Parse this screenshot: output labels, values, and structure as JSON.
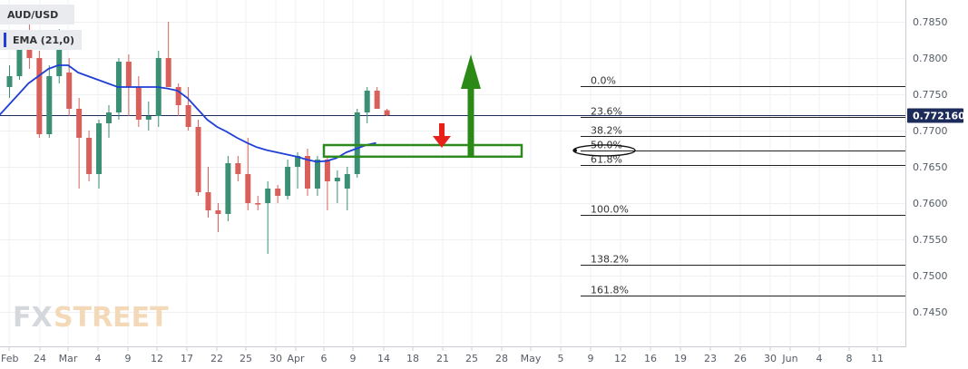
{
  "chart_data": {
    "type": "candlestick",
    "symbol": "AUD/USD",
    "indicator": "EMA (21,0)",
    "current_price": "0.772160",
    "ylim": [
      0.7405,
      0.788
    ],
    "y_ticks": [
      "0.7850",
      "0.7800",
      "0.7750",
      "0.7700",
      "0.7650",
      "0.7600",
      "0.7550",
      "0.7500",
      "0.7450"
    ],
    "x_ticks": [
      "Feb",
      "24",
      "Mar",
      "4",
      "9",
      "12",
      "17",
      "22",
      "25",
      "30",
      "Apr",
      "6",
      "9",
      "14",
      "18",
      "21",
      "25",
      "28",
      "May",
      "5",
      "9",
      "12",
      "16",
      "19",
      "23",
      "26",
      "30",
      "Jun",
      "4",
      "8",
      "11"
    ],
    "candles": [
      {
        "o": 0.776,
        "h": 0.779,
        "l": 0.7745,
        "c": 0.7775
      },
      {
        "o": 0.7775,
        "h": 0.7835,
        "l": 0.777,
        "c": 0.7825
      },
      {
        "o": 0.7825,
        "h": 0.785,
        "l": 0.7785,
        "c": 0.78
      },
      {
        "o": 0.78,
        "h": 0.781,
        "l": 0.769,
        "c": 0.7695
      },
      {
        "o": 0.7695,
        "h": 0.779,
        "l": 0.769,
        "c": 0.7775
      },
      {
        "o": 0.7775,
        "h": 0.784,
        "l": 0.7765,
        "c": 0.783
      },
      {
        "o": 0.778,
        "h": 0.78,
        "l": 0.772,
        "c": 0.773
      },
      {
        "o": 0.773,
        "h": 0.7745,
        "l": 0.762,
        "c": 0.769
      },
      {
        "o": 0.769,
        "h": 0.77,
        "l": 0.763,
        "c": 0.764
      },
      {
        "o": 0.764,
        "h": 0.7715,
        "l": 0.762,
        "c": 0.771
      },
      {
        "o": 0.771,
        "h": 0.7735,
        "l": 0.769,
        "c": 0.7725
      },
      {
        "o": 0.7725,
        "h": 0.78,
        "l": 0.7715,
        "c": 0.7795
      },
      {
        "o": 0.7795,
        "h": 0.7805,
        "l": 0.772,
        "c": 0.776
      },
      {
        "o": 0.776,
        "h": 0.7775,
        "l": 0.7705,
        "c": 0.7715
      },
      {
        "o": 0.7715,
        "h": 0.774,
        "l": 0.77,
        "c": 0.772
      },
      {
        "o": 0.772,
        "h": 0.781,
        "l": 0.7705,
        "c": 0.78
      },
      {
        "o": 0.78,
        "h": 0.785,
        "l": 0.776,
        "c": 0.776
      },
      {
        "o": 0.776,
        "h": 0.7765,
        "l": 0.772,
        "c": 0.7735
      },
      {
        "o": 0.7735,
        "h": 0.776,
        "l": 0.77,
        "c": 0.7705
      },
      {
        "o": 0.7705,
        "h": 0.7715,
        "l": 0.761,
        "c": 0.7615
      },
      {
        "o": 0.7615,
        "h": 0.765,
        "l": 0.758,
        "c": 0.759
      },
      {
        "o": 0.759,
        "h": 0.76,
        "l": 0.756,
        "c": 0.7585
      },
      {
        "o": 0.7585,
        "h": 0.7665,
        "l": 0.7575,
        "c": 0.7655
      },
      {
        "o": 0.7655,
        "h": 0.7665,
        "l": 0.763,
        "c": 0.764
      },
      {
        "o": 0.764,
        "h": 0.769,
        "l": 0.759,
        "c": 0.76
      },
      {
        "o": 0.76,
        "h": 0.761,
        "l": 0.759,
        "c": 0.7598
      },
      {
        "o": 0.76,
        "h": 0.763,
        "l": 0.753,
        "c": 0.762
      },
      {
        "o": 0.762,
        "h": 0.7625,
        "l": 0.76,
        "c": 0.761
      },
      {
        "o": 0.761,
        "h": 0.766,
        "l": 0.7605,
        "c": 0.765
      },
      {
        "o": 0.765,
        "h": 0.767,
        "l": 0.762,
        "c": 0.7665
      },
      {
        "o": 0.7665,
        "h": 0.7675,
        "l": 0.761,
        "c": 0.762
      },
      {
        "o": 0.762,
        "h": 0.7665,
        "l": 0.761,
        "c": 0.766
      },
      {
        "o": 0.766,
        "h": 0.7665,
        "l": 0.759,
        "c": 0.763
      },
      {
        "o": 0.763,
        "h": 0.7645,
        "l": 0.76,
        "c": 0.7635
      },
      {
        "o": 0.762,
        "h": 0.765,
        "l": 0.759,
        "c": 0.764
      },
      {
        "o": 0.764,
        "h": 0.773,
        "l": 0.7635,
        "c": 0.7725
      },
      {
        "o": 0.7725,
        "h": 0.776,
        "l": 0.771,
        "c": 0.7755
      },
      {
        "o": 0.7755,
        "h": 0.776,
        "l": 0.773,
        "c": 0.773
      },
      {
        "o": 0.7728,
        "h": 0.773,
        "l": 0.772,
        "c": 0.7721
      }
    ],
    "ema": [
      0.772,
      0.7735,
      0.775,
      0.7765,
      0.7775,
      0.7785,
      0.779,
      0.779,
      0.778,
      0.7775,
      0.777,
      0.7765,
      0.776,
      0.776,
      0.776,
      0.776,
      0.776,
      0.7758,
      0.7755,
      0.7745,
      0.773,
      0.7715,
      0.7705,
      0.7698,
      0.769,
      0.7683,
      0.7677,
      0.7673,
      0.767,
      0.7667,
      0.7664,
      0.766,
      0.7657,
      0.7658,
      0.7662,
      0.767,
      0.7675,
      0.768,
      0.7683
    ],
    "fibonacci": [
      {
        "label": "0.0%",
        "value": 0.7761
      },
      {
        "label": "23.6%",
        "value": 0.7719
      },
      {
        "label": "38.2%",
        "value": 0.7693
      },
      {
        "label": "50.0%",
        "value": 0.7672
      },
      {
        "label": "61.8%",
        "value": 0.7652
      },
      {
        "label": "100.0%",
        "value": 0.7584
      },
      {
        "label": "138.2%",
        "value": 0.7515
      },
      {
        "label": "161.8%",
        "value": 0.7473
      }
    ],
    "support_zone": {
      "from": 0.7664,
      "to": 0.768
    },
    "colors": {
      "bull": "#3a8f75",
      "bear": "#d9605a",
      "ema": "#1f3fd6",
      "zone": "#2e8a1e",
      "up_arrow": "#2b8a16",
      "down_arrow": "#e8201a",
      "price_tag": "#1c2b5a",
      "grid": "#eef0f3"
    }
  },
  "watermark": {
    "part1": "FX",
    "part2": "STREET"
  }
}
